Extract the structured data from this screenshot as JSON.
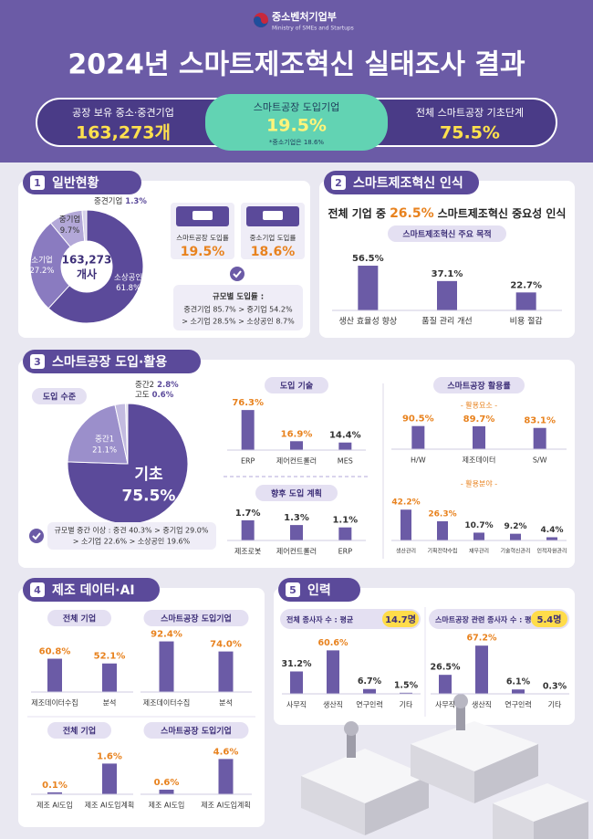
{
  "header": {
    "org": "중소벤처기업부",
    "org_en": "Ministry of SMEs and Startups",
    "title": "2024년 스마트제조혁신 실태조사 결과"
  },
  "summary": [
    {
      "label": "공장 보유 중소·중견기업",
      "value": "163,273개"
    },
    {
      "label": "스마트공장 도입기업",
      "value": "19.5%",
      "note": "*중소기업은 18.6%"
    },
    {
      "label": "전체 스마트공장 기초단계",
      "value": "75.5%"
    }
  ],
  "s1": {
    "number": "1",
    "title": "일반현황",
    "chart": {
      "type": "donut",
      "center": [
        "163,273",
        "개사"
      ],
      "categories": [
        "소상공인",
        "소기업",
        "중기업",
        "중견기업"
      ],
      "values": [
        61.8,
        27.2,
        9.7,
        1.3
      ],
      "value_labels": [
        "61.8%",
        "27.2%",
        "9.7%",
        "1.3%"
      ],
      "colors": [
        "#5b4a9a",
        "#8a7bc0",
        "#b3a8d8",
        "#d7d1ea"
      ]
    },
    "cards": [
      {
        "label": "스마트공장 도입률",
        "value": "19.5%"
      },
      {
        "label": "중소기업 도입률",
        "value": "18.6%"
      }
    ],
    "note_title": "규모별 도입률 :",
    "note_lines": [
      "중견기업 85.7% > 중기업 54.2%",
      "> 소기업 28.5% > 소상공인 8.7%"
    ]
  },
  "s2": {
    "number": "2",
    "title": "스마트제조혁신 인식",
    "headline": [
      "전체 기업 중",
      "26.5%",
      "스마트제조혁신 중요성 인식"
    ],
    "chart": {
      "type": "bar",
      "title": "스마트제조혁신 주요 목적",
      "categories": [
        "생산 효율성 향상",
        "품질 관리 개선",
        "비용 절감"
      ],
      "values": [
        56.5,
        37.1,
        22.7
      ],
      "value_labels": [
        "56.5%",
        "37.1%",
        "22.7%"
      ],
      "ylim": [
        0,
        60
      ],
      "color": "#6b5ba6",
      "label_colors": [
        "#333333",
        "#333333",
        "#333333"
      ]
    }
  },
  "s3": {
    "number": "3",
    "title": "스마트공장 도입·활용",
    "level": {
      "type": "pie",
      "title": "도입 수준",
      "categories": [
        "기초",
        "중간1",
        "중간2",
        "고도"
      ],
      "values": [
        75.5,
        21.1,
        2.8,
        0.6
      ],
      "value_labels": [
        "75.5%",
        "21.1%",
        "2.8%",
        "0.6%"
      ],
      "colors": [
        "#5b4a9a",
        "#9b8fcb",
        "#c3bbe0",
        "#e0dcef"
      ]
    },
    "note_lines": [
      "규모별 중간 이상 : 중견 40.3% > 중기업 29.0%",
      "> 소기업 22.6% > 소상공인 19.6%"
    ],
    "tech": {
      "type": "bar",
      "title": "도입 기술",
      "categories": [
        "ERP",
        "제어컨트롤러",
        "MES"
      ],
      "values": [
        76.3,
        16.9,
        14.4
      ],
      "value_labels": [
        "76.3%",
        "16.9%",
        "14.4%"
      ],
      "ylim": [
        0,
        80
      ],
      "color": "#6b5ba6",
      "label_colors": [
        "#e8821e",
        "#e8821e",
        "#333333"
      ]
    },
    "plan": {
      "type": "bar",
      "title": "향후 도입 계획",
      "categories": [
        "제조로봇",
        "제어컨트롤러",
        "ERP"
      ],
      "values": [
        1.7,
        1.3,
        1.1
      ],
      "value_labels": [
        "1.7%",
        "1.3%",
        "1.1%"
      ],
      "ylim": [
        0,
        2
      ],
      "color": "#6b5ba6",
      "label_colors": [
        "#333333",
        "#333333",
        "#333333"
      ]
    },
    "usage_title": "스마트공장 활용률",
    "elements": {
      "type": "bar",
      "title": "- 활용요소 -",
      "categories": [
        "H/W",
        "제조데이터",
        "S/W"
      ],
      "values": [
        90.5,
        89.7,
        83.1
      ],
      "value_labels": [
        "90.5%",
        "89.7%",
        "83.1%"
      ],
      "ylim": [
        0,
        100
      ],
      "color": "#6b5ba6",
      "label_colors": [
        "#e8821e",
        "#e8821e",
        "#e8821e"
      ]
    },
    "fields": {
      "type": "bar",
      "title": "- 활용분야 -",
      "categories": [
        "생산관리",
        "기획전략수립",
        "재무관리",
        "기술혁신관리",
        "인적자원관리"
      ],
      "values": [
        42.2,
        26.3,
        10.7,
        9.2,
        4.4
      ],
      "value_labels": [
        "42.2%",
        "26.3%",
        "10.7%",
        "9.2%",
        "4.4%"
      ],
      "ylim": [
        0,
        50
      ],
      "color": "#6b5ba6",
      "label_colors": [
        "#e8821e",
        "#e8821e",
        "#333333",
        "#333333",
        "#333333"
      ]
    }
  },
  "s4": {
    "number": "4",
    "title": "제조 데이터·AI",
    "charts": [
      {
        "type": "bar",
        "title": "전체 기업",
        "categories": [
          "제조데이터수집",
          "분석"
        ],
        "values": [
          60.8,
          52.1
        ],
        "value_labels": [
          "60.8%",
          "52.1%"
        ],
        "ylim": [
          0,
          100
        ],
        "color": "#6b5ba6",
        "label_colors": [
          "#e8821e",
          "#e8821e"
        ]
      },
      {
        "type": "bar",
        "title": "스마트공장 도입기업",
        "categories": [
          "제조데이터수집",
          "분석"
        ],
        "values": [
          92.4,
          74
        ],
        "value_labels": [
          "92.4%",
          "74.0%"
        ],
        "ylim": [
          0,
          100
        ],
        "color": "#6b5ba6",
        "label_colors": [
          "#e8821e",
          "#e8821e"
        ]
      },
      {
        "type": "bar",
        "title": "전체 기업",
        "categories": [
          "제조 AI도입",
          "제조 AI도입계획"
        ],
        "values": [
          0.1,
          1.6
        ],
        "value_labels": [
          "0.1%",
          "1.6%"
        ],
        "ylim": [
          0,
          2
        ],
        "color": "#6b5ba6",
        "label_colors": [
          "#e8821e",
          "#e8821e"
        ]
      },
      {
        "type": "bar",
        "title": "스마트공장 도입기업",
        "categories": [
          "제조 AI도입",
          "제조 AI도입계획"
        ],
        "values": [
          0.6,
          4.6
        ],
        "value_labels": [
          "0.6%",
          "4.6%"
        ],
        "ylim": [
          0,
          5
        ],
        "color": "#6b5ba6",
        "label_colors": [
          "#e8821e",
          "#e8821e"
        ]
      }
    ]
  },
  "s5": {
    "number": "5",
    "title": "인력",
    "charts": [
      {
        "type": "bar",
        "title": "전체 종사자 수 : 평균",
        "badge": "14.7명",
        "categories": [
          "사무직",
          "생산직",
          "연구인력",
          "기타"
        ],
        "values": [
          31.2,
          60.6,
          6.7,
          1.5
        ],
        "value_labels": [
          "31.2%",
          "60.6%",
          "6.7%",
          "1.5%"
        ],
        "ylim": [
          0,
          70
        ],
        "color": "#6b5ba6",
        "label_colors": [
          "#333333",
          "#e8821e",
          "#333333",
          "#333333"
        ]
      },
      {
        "type": "bar",
        "title": "스마트공장 관련 종사자 수 : 평균",
        "badge": "5.4명",
        "categories": [
          "사무직",
          "생산직",
          "연구인력",
          "기타"
        ],
        "values": [
          26.5,
          67.2,
          6.1,
          0.3
        ],
        "value_labels": [
          "26.5%",
          "67.2%",
          "6.1%",
          "0.3%"
        ],
        "ylim": [
          0,
          70
        ],
        "color": "#6b5ba6",
        "label_colors": [
          "#333333",
          "#e8821e",
          "#333333",
          "#333333"
        ]
      }
    ]
  }
}
